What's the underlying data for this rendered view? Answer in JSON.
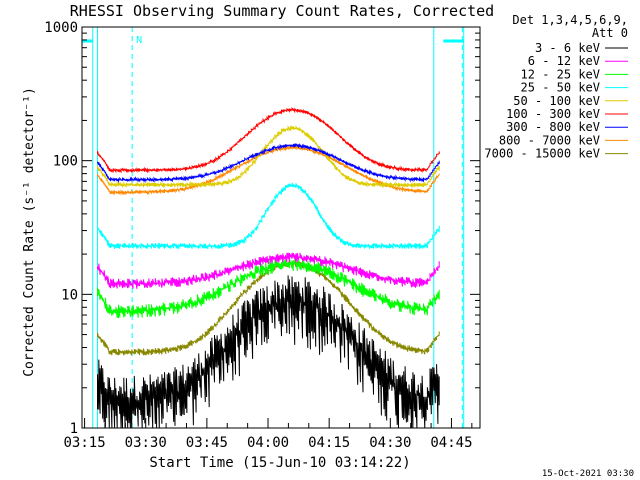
{
  "chart_data": {
    "type": "line",
    "title": "RHESSI Observing Summary Count Rates, Corrected",
    "xlabel": "Start Time (15-Jun-10 03:14:22)",
    "ylabel": "Corrected Count Rate (s⁻¹ detector⁻¹)",
    "y_scale": "log",
    "ylim": [
      1,
      1000
    ],
    "x_range_minutes": [
      "03:14:22",
      "04:52:00"
    ],
    "x_tick_labels": [
      "03:15",
      "03:30",
      "03:45",
      "04:00",
      "04:15",
      "04:30",
      "04:45"
    ],
    "y_tick_labels": [
      "1",
      "10",
      "100",
      "1000"
    ],
    "legend_header": [
      "Det 1,3,4,5,6,9,",
      "Att 0"
    ],
    "legend_placement": "right",
    "night_segments": [
      {
        "start": "03:14:22",
        "end": "03:17:00",
        "level": "top"
      },
      {
        "start": "04:43:00",
        "end": "04:48:00",
        "level": "top"
      }
    ],
    "markers": [
      {
        "time": "03:26:40",
        "label": "N",
        "style": "dashed"
      },
      {
        "time": "04:40:40",
        "style": "solid"
      },
      {
        "time": "04:47:40",
        "style": "dashed"
      }
    ],
    "data_start": "03:18:10",
    "data_end": "04:42:00",
    "peak_time": "04:06:00",
    "series": [
      {
        "name": "3 - 6 keV",
        "color": "#000000",
        "base": 1.6,
        "peak": 9,
        "width": 11,
        "noise": 0.55
      },
      {
        "name": "6 - 12 keV",
        "color": "#ff00ff",
        "base": 12,
        "peak": 19,
        "width": 12,
        "noise": 0.09
      },
      {
        "name": "12 - 25 keV",
        "color": "#00ff00",
        "base": 7.5,
        "peak": 17,
        "width": 12,
        "noise": 0.12
      },
      {
        "name": "25 - 50 keV",
        "color": "#00ffff",
        "base": 23,
        "peak": 65,
        "width": 5,
        "noise": 0.05
      },
      {
        "name": "50 - 100 keV",
        "color": "#ddcc00",
        "base": 66,
        "peak": 175,
        "width": 6,
        "noise": 0.04
      },
      {
        "name": "100 - 300 keV",
        "color": "#ff0000",
        "base": 85,
        "peak": 240,
        "width": 9,
        "noise": 0.03
      },
      {
        "name": "300 - 800 keV",
        "color": "#0000ff",
        "base": 72,
        "peak": 130,
        "width": 10,
        "noise": 0.03
      },
      {
        "name": "800 - 7000 keV",
        "color": "#ff8800",
        "base": 58,
        "peak": 125,
        "width": 11,
        "noise": 0.03
      },
      {
        "name": "7000 - 15000 keV",
        "color": "#888800",
        "base": 3.7,
        "peak": 17,
        "width": 10,
        "noise": 0.06
      }
    ]
  },
  "footer_timestamp": "15-Oct-2021 03:30"
}
